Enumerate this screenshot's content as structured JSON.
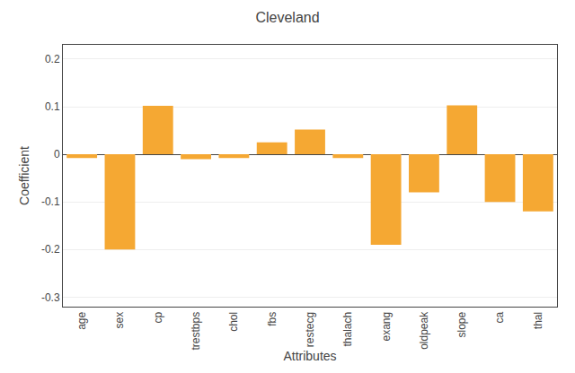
{
  "chart_data": {
    "type": "bar",
    "title": "Cleveland",
    "xlabel": "Attributes",
    "ylabel": "Coefficient",
    "categories": [
      "age",
      "sex",
      "cp",
      "trestbps",
      "chol",
      "fbs",
      "restecg",
      "thalach",
      "exang",
      "oldpeak",
      "slope",
      "ca",
      "thal"
    ],
    "values": [
      -0.008,
      -0.2,
      0.102,
      -0.01,
      -0.008,
      0.025,
      0.052,
      -0.008,
      -0.19,
      -0.08,
      0.103,
      -0.1,
      -0.12
    ],
    "color": "#F5A833",
    "ylim": [
      -0.32,
      0.23
    ],
    "yticks": [
      -0.3,
      -0.2,
      -0.1,
      0,
      0.1,
      0.2
    ],
    "grid": true
  }
}
